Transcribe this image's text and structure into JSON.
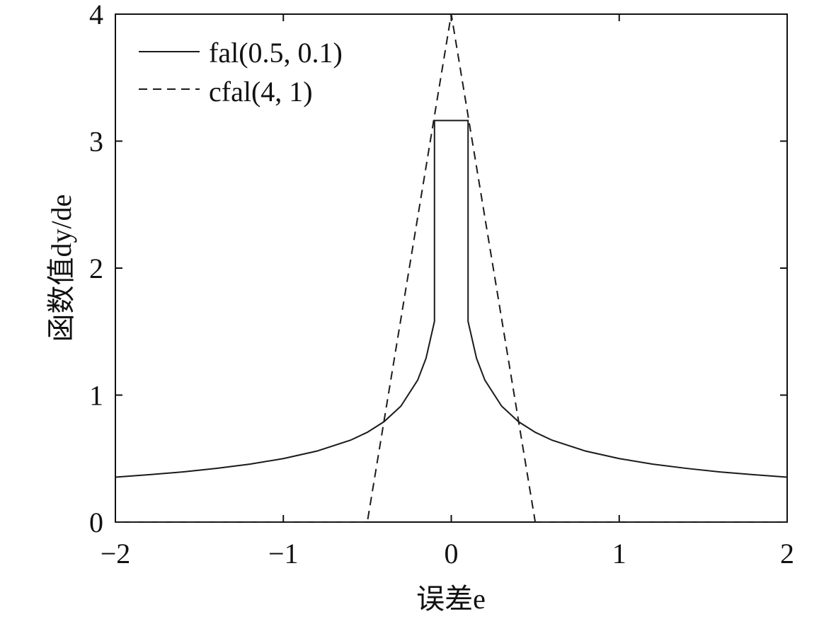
{
  "chart_data": {
    "type": "line",
    "title": "",
    "xlabel": "误差e",
    "ylabel": "函数值dy/de",
    "xlim": [
      -2,
      2
    ],
    "ylim": [
      0,
      4
    ],
    "x_ticks": [
      -2,
      -1,
      0,
      1,
      2
    ],
    "x_tick_labels": [
      "−2",
      "−1",
      "0",
      "1",
      "2"
    ],
    "y_ticks": [
      0,
      1,
      2,
      3,
      4
    ],
    "y_tick_labels": [
      "0",
      "1",
      "2",
      "3",
      "4"
    ],
    "grid": false,
    "legend_position": "top-left",
    "series": [
      {
        "name": "fal(0.5, 0.1)",
        "style": "solid",
        "color": "#1a1a1a",
        "x": [
          -2,
          -1.8,
          -1.6,
          -1.4,
          -1.2,
          -1,
          -0.8,
          -0.6,
          -0.5,
          -0.4,
          -0.3,
          -0.2,
          -0.15,
          -0.1,
          -0.1,
          0.1,
          0.1,
          0.15,
          0.2,
          0.3,
          0.4,
          0.5,
          0.6,
          0.8,
          1,
          1.2,
          1.4,
          1.6,
          1.8,
          2
        ],
        "y": [
          0.354,
          0.373,
          0.395,
          0.423,
          0.456,
          0.5,
          0.559,
          0.645,
          0.707,
          0.791,
          0.913,
          1.118,
          1.291,
          1.581,
          3.162,
          3.162,
          1.581,
          1.291,
          1.118,
          0.913,
          0.791,
          0.707,
          0.645,
          0.559,
          0.5,
          0.456,
          0.423,
          0.395,
          0.373,
          0.354
        ]
      },
      {
        "name": "cfal(4, 1)",
        "style": "dashed",
        "color": "#1a1a1a",
        "x": [
          -2,
          -0.5,
          0,
          0.5,
          2
        ],
        "y": [
          0,
          0,
          4,
          0,
          0
        ]
      }
    ]
  }
}
